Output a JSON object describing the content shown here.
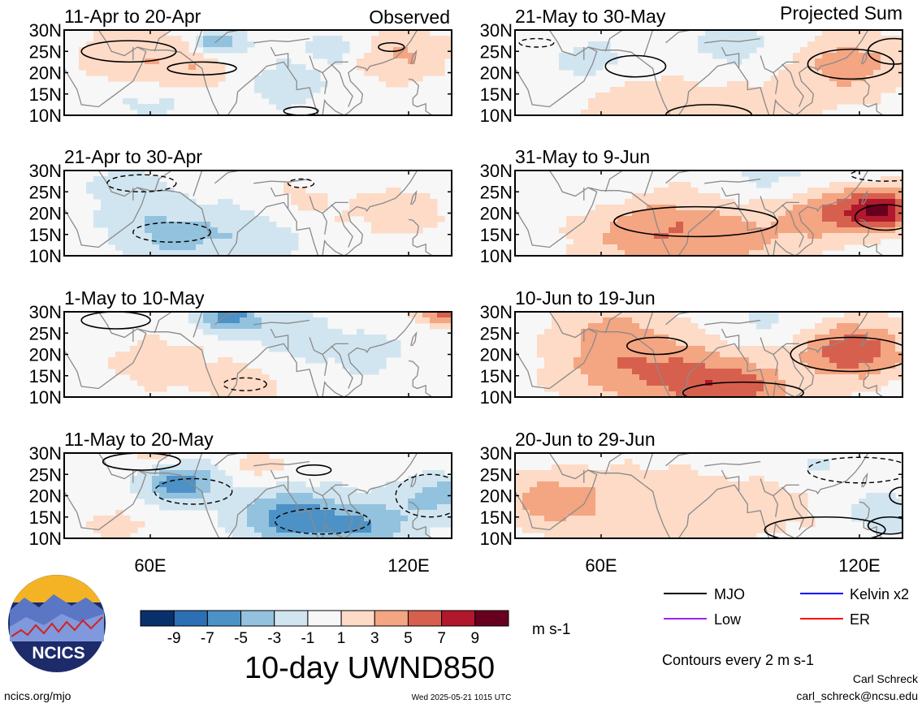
{
  "header": {
    "observed_label": "Observed",
    "projected_label": "Projected Sum"
  },
  "panels": [
    {
      "title": "11-Apr to 20-Apr"
    },
    {
      "title": "21-Apr to 30-Apr"
    },
    {
      "title": "1-May to 10-May"
    },
    {
      "title": "11-May to 20-May"
    },
    {
      "title": "21-May to 30-May"
    },
    {
      "title": "31-May to 9-Jun"
    },
    {
      "title": "10-Jun to 19-Jun"
    },
    {
      "title": "20-Jun to 29-Jun"
    }
  ],
  "colorbar": {
    "labels": [
      "-9",
      "-7",
      "-5",
      "-3",
      "-1",
      "1",
      "3",
      "5",
      "7",
      "9"
    ],
    "colors": [
      "#08306b",
      "#2c6fb5",
      "#4d92c6",
      "#92c2de",
      "#d1e5f0",
      "#f7f7f7",
      "#fddbc7",
      "#f4a582",
      "#d6604d",
      "#b2182b",
      "#67001f"
    ],
    "units": "m s-1"
  },
  "main_title": "10-day UWND850",
  "legend": {
    "items": [
      {
        "label": "MJO",
        "color": "#000000"
      },
      {
        "label": "Kelvin x2",
        "color": "#0000ff"
      },
      {
        "label": "Low",
        "color": "#a020f0"
      },
      {
        "label": "ER",
        "color": "#ff0000"
      }
    ],
    "contour_note": "Contours every 2 m s-1"
  },
  "footer": {
    "logo_text": "NCICS",
    "url": "ncics.org/mjo",
    "timestamp": "Wed 2025-05-21 1015 UTC",
    "author": "Carl Schreck",
    "email": "carl_schreck@ncsu.edu"
  },
  "chart_data": {
    "type": "heatmap",
    "variable": "10-day UWND850",
    "units": "m s-1",
    "lat_ticks": [
      "30N",
      "25N",
      "20N",
      "15N",
      "10N"
    ],
    "lon_ticks": [
      "60E",
      "120E"
    ],
    "lat_range": [
      10,
      30
    ],
    "lon_range": [
      40,
      130
    ],
    "color_levels": [
      -9,
      -7,
      -5,
      -3,
      -1,
      1,
      3,
      5,
      7,
      9
    ],
    "panels_observed": [
      "11-Apr to 20-Apr",
      "21-Apr to 30-Apr",
      "1-May to 10-May",
      "11-May to 20-May"
    ],
    "panels_projected": [
      "21-May to 30-May",
      "31-May to 9-Jun",
      "10-Jun to 19-Jun",
      "20-Jun to 29-Jun"
    ],
    "contour_interval": 2
  }
}
